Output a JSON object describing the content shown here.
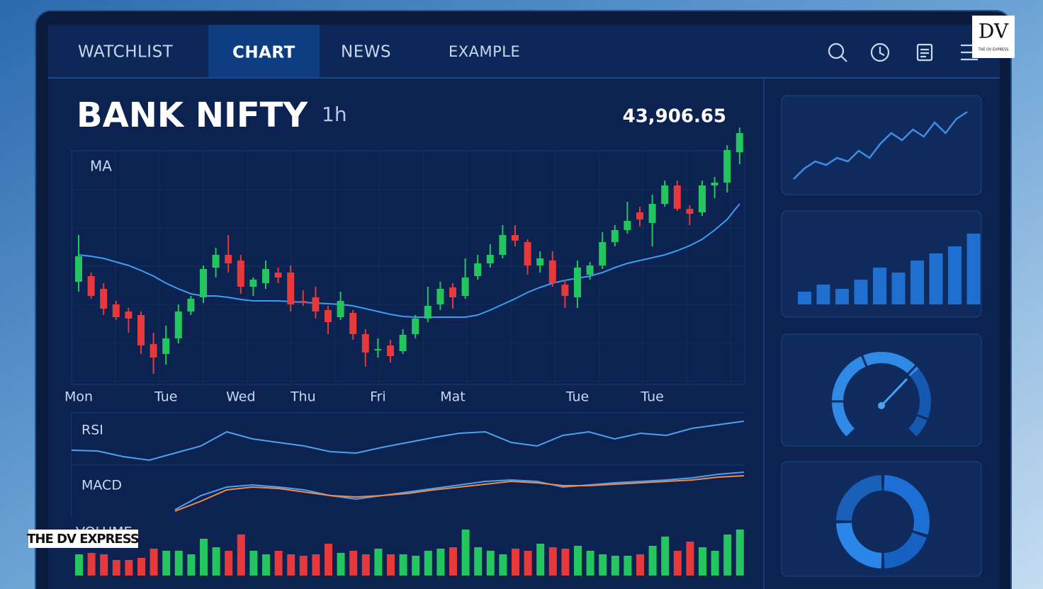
{
  "nav": {
    "tabs": [
      "WATCHLIST",
      "CHART",
      "NEWS",
      "EXAMPLE"
    ],
    "active": 1
  },
  "logo": {
    "mark": "DV",
    "text": "THE DV EXPRESS"
  },
  "watermark": "THE DV EXPRESS",
  "chart_data": [
    {
      "type": "candlestick",
      "title": "BANK NIFTY",
      "subtitle": "1h",
      "price": "43,906.65",
      "categories": [
        "Mon",
        null,
        null,
        null,
        null,
        null,
        null,
        "Tue",
        null,
        null,
        null,
        null,
        null,
        "Wed",
        null,
        null,
        null,
        null,
        "Thu",
        null,
        null,
        null,
        null,
        null,
        "Fri",
        null,
        null,
        null,
        null,
        null,
        "Mat",
        null,
        null,
        null,
        null,
        null,
        null,
        null,
        null,
        null,
        "Tue",
        null,
        null,
        null,
        null,
        null,
        "Tue",
        null,
        null,
        null,
        null,
        null,
        null,
        null
      ],
      "open": [
        142,
        150,
        132,
        110,
        100,
        95,
        54,
        40,
        62,
        100,
        120,
        162,
        180,
        172,
        135,
        140,
        155,
        155,
        115,
        120,
        102,
        92,
        98,
        68,
        45,
        52,
        44,
        68,
        90,
        110,
        134,
        122,
        150,
        168,
        180,
        208,
        198,
        165,
        172,
        138,
        120,
        152,
        165,
        198,
        215,
        240,
        225,
        252,
        278,
        245,
        240,
        278,
        282,
        325
      ],
      "high": [
        208,
        155,
        140,
        115,
        105,
        100,
        70,
        80,
        110,
        122,
        165,
        190,
        208,
        180,
        148,
        172,
        162,
        165,
        130,
        135,
        108,
        128,
        102,
        75,
        62,
        60,
        75,
        95,
        135,
        142,
        140,
        175,
        180,
        195,
        222,
        222,
        202,
        185,
        185,
        145,
        172,
        170,
        212,
        222,
        255,
        248,
        265,
        285,
        285,
        250,
        285,
        290,
        335,
        360
      ],
      "low": [
        128,
        118,
        95,
        88,
        70,
        40,
        12,
        25,
        55,
        95,
        112,
        148,
        155,
        125,
        122,
        132,
        140,
        100,
        108,
        90,
        68,
        88,
        60,
        22,
        35,
        28,
        40,
        62,
        85,
        102,
        104,
        118,
        145,
        162,
        175,
        192,
        152,
        155,
        135,
        105,
        105,
        145,
        160,
        192,
        210,
        220,
        192,
        248,
        242,
        222,
        235,
        260,
        268,
        308
      ],
      "close": [
        178,
        122,
        104,
        92,
        90,
        52,
        35,
        62,
        100,
        118,
        160,
        180,
        168,
        135,
        145,
        160,
        148,
        110,
        112,
        100,
        85,
        115,
        68,
        42,
        47,
        37,
        67,
        90,
        108,
        132,
        120,
        148,
        168,
        180,
        208,
        200,
        165,
        175,
        140,
        122,
        162,
        165,
        198,
        215,
        228,
        230,
        252,
        278,
        245,
        238,
        278,
        282,
        328,
        352
      ],
      "up_color": "#22c55e",
      "down_color": "#e5393b",
      "ylim": [
        0,
        360
      ],
      "series": [
        {
          "name": "MA",
          "color": "#3d9df2",
          "values": [
            180,
            178,
            175,
            170,
            165,
            158,
            150,
            140,
            132,
            125,
            122,
            122,
            120,
            117,
            115,
            115,
            115,
            114,
            113,
            112,
            111,
            110,
            108,
            104,
            100,
            96,
            93,
            92,
            92,
            92,
            92,
            92,
            95,
            102,
            110,
            118,
            127,
            134,
            140,
            144,
            147,
            150,
            155,
            162,
            168,
            172,
            176,
            180,
            186,
            193,
            202,
            215,
            230,
            252
          ]
        }
      ]
    },
    {
      "type": "line",
      "series": [
        {
          "name": "RSI",
          "color": "#4aa3f0",
          "values": [
            24,
            23,
            15,
            10,
            20,
            30,
            50,
            40,
            35,
            30,
            22,
            20,
            28,
            35,
            42,
            48,
            50,
            35,
            30,
            45,
            50,
            40,
            48,
            45,
            55,
            60,
            65
          ]
        }
      ]
    },
    {
      "type": "line",
      "series": [
        {
          "name": "MACD",
          "color": "#4aa3f0",
          "values": [
            null,
            null,
            null,
            null,
            10,
            30,
            42,
            45,
            42,
            38,
            30,
            25,
            30,
            35,
            40,
            45,
            50,
            52,
            50,
            42,
            45,
            48,
            50,
            52,
            55,
            60,
            63
          ]
        },
        {
          "color": "#f08a4b",
          "values": [
            null,
            null,
            null,
            null,
            8,
            22,
            38,
            42,
            40,
            35,
            30,
            28,
            30,
            33,
            38,
            42,
            46,
            50,
            48,
            44,
            44,
            46,
            48,
            50,
            52,
            56,
            58
          ]
        }
      ]
    },
    {
      "type": "bar",
      "title": "VOLUME",
      "values": [
        30,
        32,
        30,
        22,
        22,
        25,
        38,
        35,
        35,
        30,
        52,
        40,
        35,
        58,
        35,
        30,
        35,
        30,
        28,
        30,
        45,
        32,
        35,
        30,
        38,
        30,
        30,
        28,
        35,
        38,
        40,
        65,
        40,
        35,
        30,
        38,
        35,
        45,
        40,
        38,
        42,
        35,
        30,
        28,
        28,
        30,
        42,
        55,
        35,
        48,
        40,
        35,
        58,
        65
      ]
    },
    {
      "type": "line",
      "color": "#3d8ee6",
      "values": [
        5,
        20,
        30,
        25,
        35,
        30,
        45,
        35,
        55,
        70,
        60,
        75,
        65,
        85,
        70,
        90,
        100
      ]
    },
    {
      "type": "bar",
      "color": "#1f6fd0",
      "values": [
        18,
        28,
        22,
        35,
        52,
        45,
        62,
        72,
        82,
        100
      ]
    },
    {
      "type": "gauge",
      "value": 68,
      "lim": [
        0,
        100
      ],
      "color": "#2f8ae6"
    },
    {
      "type": "pie",
      "values": [
        30,
        20,
        25,
        25
      ],
      "colors": [
        "#1d6fd6",
        "#1560c0",
        "#2a86e8",
        "#1a5fb8"
      ]
    }
  ]
}
